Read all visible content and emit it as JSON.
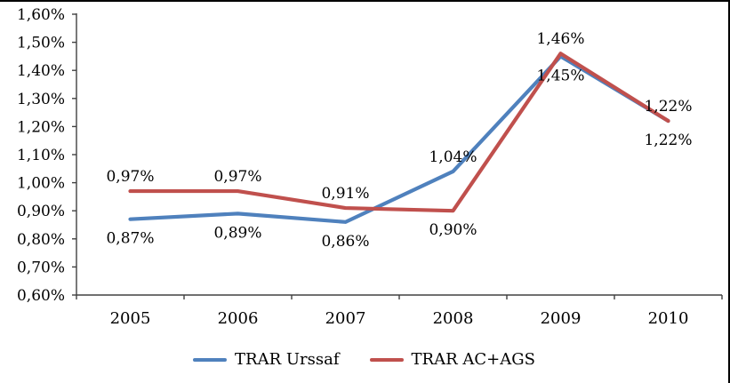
{
  "chart_data": {
    "type": "line",
    "title": "",
    "xlabel": "",
    "ylabel": "",
    "grid": false,
    "legend_position": "bottom",
    "categories": [
      "2005",
      "2006",
      "2007",
      "2008",
      "2009",
      "2010"
    ],
    "y_axis": {
      "min": 0.6,
      "max": 1.6,
      "step": 0.1,
      "tick_labels": [
        "1,60%",
        "1,50%",
        "1,40%",
        "1,30%",
        "1,20%",
        "1,10%",
        "1,00%",
        "0,90%",
        "0,80%",
        "0,70%",
        "0,60%"
      ]
    },
    "series": [
      {
        "name": "TRAR Urssaf",
        "color": "#4F81BD",
        "values": [
          0.87,
          0.89,
          0.86,
          1.04,
          1.45,
          1.22
        ],
        "labels": [
          "0,87%",
          "0,89%",
          "0,86%",
          "1,04%",
          "1,45%",
          "1,22%"
        ]
      },
      {
        "name": "TRAR AC+AGS",
        "color": "#C0504D",
        "values": [
          0.97,
          0.97,
          0.91,
          0.9,
          1.46,
          1.22
        ],
        "labels": [
          "0,97%",
          "0,97%",
          "0,91%",
          "0,90%",
          "1,46%",
          "1,22%"
        ]
      }
    ],
    "axis_color": "#404040",
    "label_color": "#000000"
  }
}
